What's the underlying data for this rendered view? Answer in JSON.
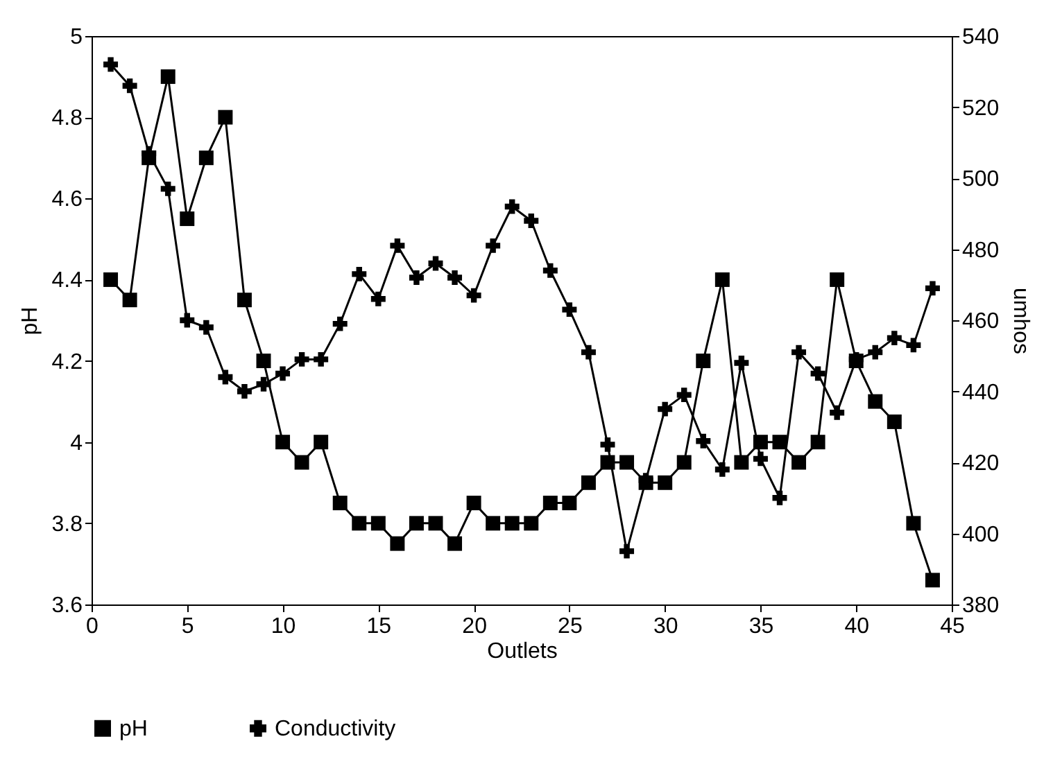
{
  "chart_data": {
    "type": "line",
    "xlabel": "Outlets",
    "ylabel": "pH",
    "y2label": "umhos",
    "x": [
      1,
      2,
      3,
      4,
      5,
      6,
      7,
      8,
      9,
      10,
      11,
      12,
      13,
      14,
      15,
      16,
      17,
      18,
      19,
      20,
      21,
      22,
      23,
      24,
      25,
      26,
      27,
      28,
      29,
      30,
      31,
      32,
      33,
      34,
      35,
      36,
      37,
      38,
      39,
      40,
      41,
      42,
      43,
      44
    ],
    "series": [
      {
        "name": "pH",
        "color": "#000000",
        "marker": "square",
        "values": [
          4.4,
          4.35,
          4.7,
          4.9,
          4.55,
          4.7,
          4.8,
          4.35,
          4.2,
          4.0,
          3.95,
          4.0,
          3.85,
          3.8,
          3.8,
          3.75,
          3.8,
          3.8,
          3.75,
          3.85,
          3.8,
          3.8,
          3.8,
          3.85,
          3.85,
          3.9,
          3.95,
          3.95,
          3.9,
          3.9,
          3.95,
          4.2,
          4.4,
          3.95,
          4.0,
          4.0,
          3.95,
          4.0,
          4.4,
          4.2,
          4.1,
          4.05,
          3.8,
          3.66
        ]
      },
      {
        "name": "Conductivity",
        "color": "#000000",
        "marker": "cross",
        "axis": "y2",
        "values": [
          532,
          526,
          507,
          497,
          460,
          458,
          444,
          440,
          442,
          445,
          449,
          449,
          459,
          473,
          466,
          481,
          472,
          476,
          472,
          467,
          481,
          492,
          488,
          474,
          463,
          451,
          425,
          395,
          415,
          435,
          439,
          426,
          418,
          448,
          421,
          410,
          451,
          445,
          434,
          449,
          451,
          455,
          453,
          469
        ]
      }
    ],
    "xlim": [
      0,
      45
    ],
    "xticks": [
      0,
      5,
      10,
      15,
      20,
      25,
      30,
      35,
      40,
      45
    ],
    "ylim": [
      3.6,
      5
    ],
    "yticks": [
      3.6,
      3.8,
      4,
      4.2,
      4.4,
      4.6,
      4.8,
      5
    ],
    "y2lim": [
      380,
      540
    ],
    "y2ticks": [
      380,
      400,
      420,
      440,
      460,
      480,
      500,
      520,
      540
    ],
    "grid": false,
    "legend": "bottom",
    "line_style": "solid"
  }
}
